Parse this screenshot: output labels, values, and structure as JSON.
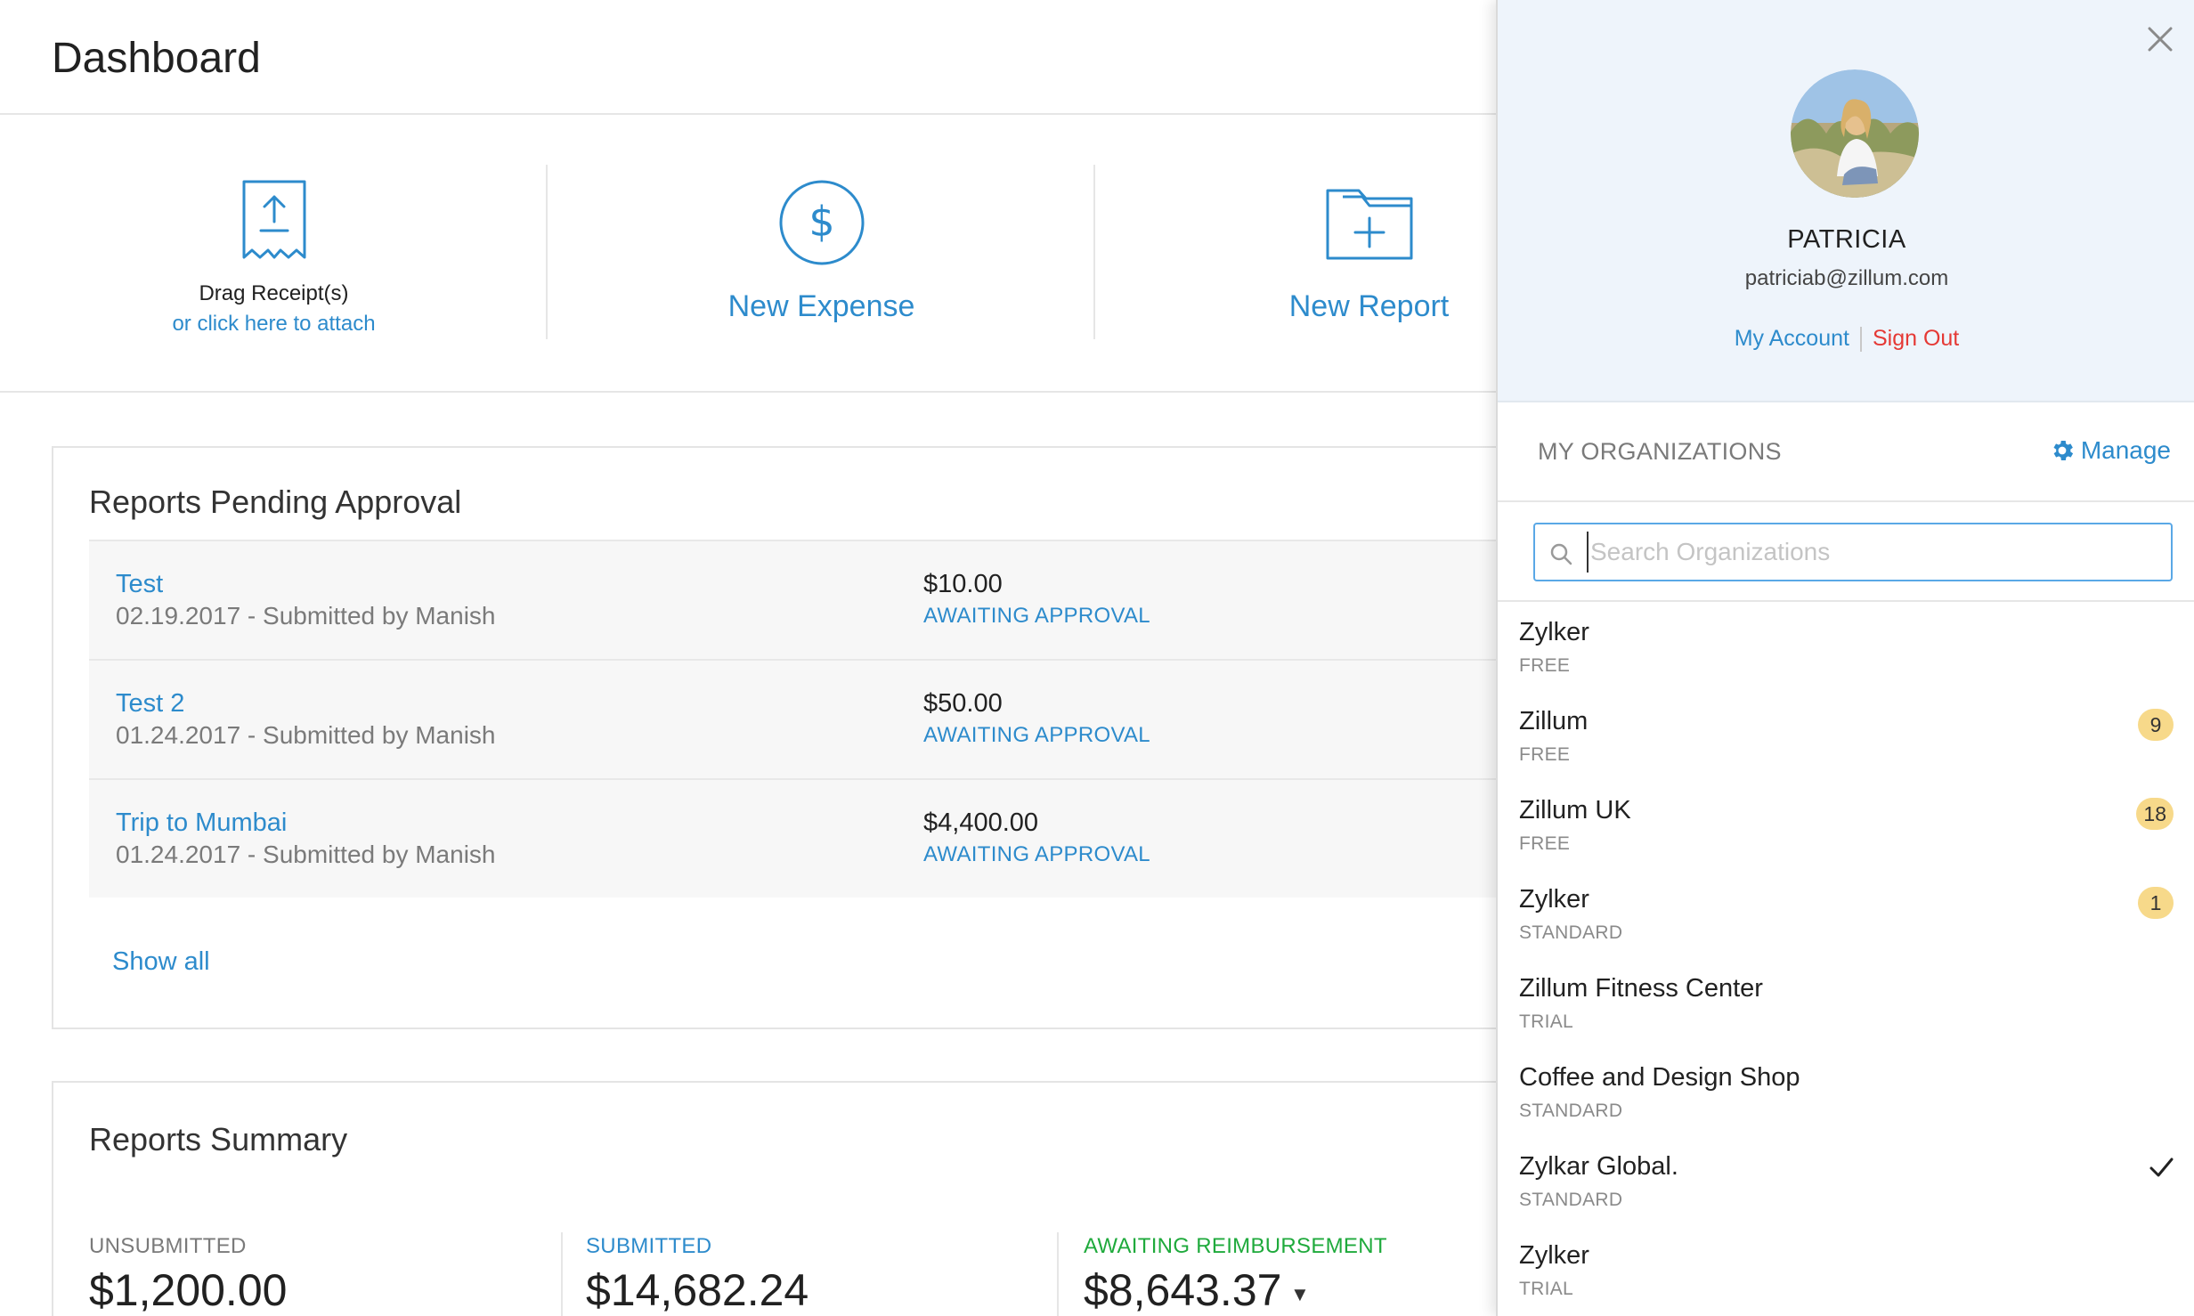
{
  "header": {
    "title": "Dashboard"
  },
  "quick_actions": {
    "drag_receipts": "Drag Receipt(s)",
    "click_to_attach": "or click here to attach",
    "new_expense": "New Expense",
    "new_report": "New Report"
  },
  "pending": {
    "title": "Reports Pending Approval",
    "rows": [
      {
        "name": "Test",
        "meta": "02.19.2017 - Submitted by Manish",
        "amount": "$10.00",
        "status": "AWAITING APPROVAL"
      },
      {
        "name": "Test 2",
        "meta": "01.24.2017 - Submitted by Manish",
        "amount": "$50.00",
        "status": "AWAITING APPROVAL"
      },
      {
        "name": "Trip to Mumbai",
        "meta": "01.24.2017 - Submitted by Manish",
        "amount": "$4,400.00",
        "status": "AWAITING APPROVAL"
      }
    ],
    "show_all": "Show all"
  },
  "summary": {
    "title": "Reports Summary",
    "unsubmitted": {
      "label": "UNSUBMITTED",
      "value": "$1,200.00",
      "color": "#7a7a7a"
    },
    "submitted": {
      "label": "SUBMITTED",
      "value": "$14,682.24",
      "color": "#2d8bcc"
    },
    "awaiting": {
      "label": "AWAITING REIMBURSEMENT",
      "value": "$8,643.37",
      "color": "#1faa3c"
    }
  },
  "profile": {
    "name": "PATRICIA",
    "email": "patriciab@zillum.com",
    "my_account": "My Account",
    "sign_out": "Sign Out"
  },
  "organizations": {
    "title": "MY ORGANIZATIONS",
    "manage": "Manage",
    "search_placeholder": "Search Organizations",
    "items": [
      {
        "name": "Zylker",
        "plan": "FREE",
        "badge": ""
      },
      {
        "name": "Zillum",
        "plan": "FREE",
        "badge": "9"
      },
      {
        "name": "Zillum UK",
        "plan": "FREE",
        "badge": "18"
      },
      {
        "name": "Zylker",
        "plan": "STANDARD",
        "badge": "1"
      },
      {
        "name": "Zillum Fitness Center",
        "plan": "TRIAL",
        "badge": ""
      },
      {
        "name": "Coffee and Design Shop",
        "plan": "STANDARD",
        "badge": ""
      },
      {
        "name": "Zylkar Global.",
        "plan": "STANDARD",
        "badge": "",
        "selected": true
      },
      {
        "name": "Zylker",
        "plan": "TRIAL",
        "badge": ""
      }
    ]
  },
  "colors": {
    "accent": "#2d8bcc",
    "sign_out": "#e53935",
    "badge": "#f7d98a",
    "panel_bg": "#eef4fb"
  },
  "icons": [
    "upload-receipt-icon",
    "dollar-circle-icon",
    "folder-plus-icon",
    "close-icon",
    "gear-icon",
    "search-icon",
    "checkmark-icon",
    "caret-down-icon"
  ]
}
